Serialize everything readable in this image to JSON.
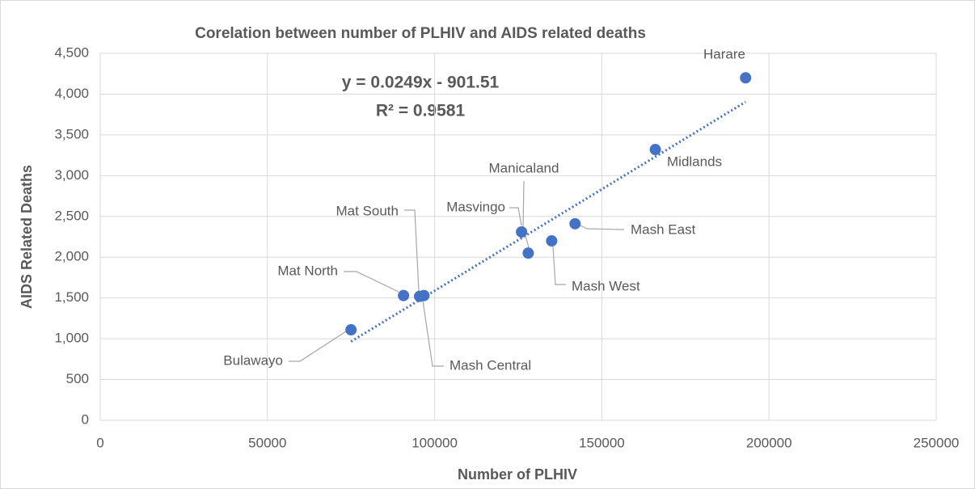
{
  "chart_data": {
    "type": "scatter",
    "title": "Corelation between number of PLHIV and AIDS related deaths",
    "xlabel": "Number of PLHIV",
    "ylabel": "AIDS Related Deaths",
    "labels": [
      "Harare",
      "Midlands",
      "Mash East",
      "Mash West",
      "Manicaland",
      "Masvingo",
      "Mat South",
      "Mash Central",
      "Mat North",
      "Bulawayo"
    ],
    "x": [
      193000,
      166000,
      142000,
      135000,
      128000,
      126000,
      95500,
      96800,
      90700,
      75000
    ],
    "series": [
      {
        "color": "#4472c4",
        "values": [
          4200,
          3320,
          2410,
          2200,
          2050,
          2310,
          1520,
          1530,
          1530,
          1110
        ]
      }
    ],
    "trendline": {
      "equation": "y = 0.0249x - 901.51",
      "r2": "R² = 0.9581",
      "slope": 0.0249,
      "intercept": -901.51,
      "color": "#4472c4"
    },
    "xlim": [
      0,
      250000
    ],
    "xticks": [
      0,
      50000,
      100000,
      150000,
      200000,
      250000
    ],
    "ylim": [
      0,
      4500
    ],
    "yticks": [
      0,
      500,
      {
        "value": 1000,
        "label": "1,000"
      },
      {
        "value": 1500,
        "label": "1,500"
      },
      {
        "value": 2000,
        "label": "2,000"
      },
      {
        "value": 2500,
        "label": "2,500"
      },
      {
        "value": 3000,
        "label": "3,000"
      },
      {
        "value": 3500,
        "label": "3,500"
      },
      {
        "value": 4000,
        "label": "4,000"
      },
      {
        "value": 4500,
        "label": "4,500"
      }
    ],
    "grid": true
  }
}
